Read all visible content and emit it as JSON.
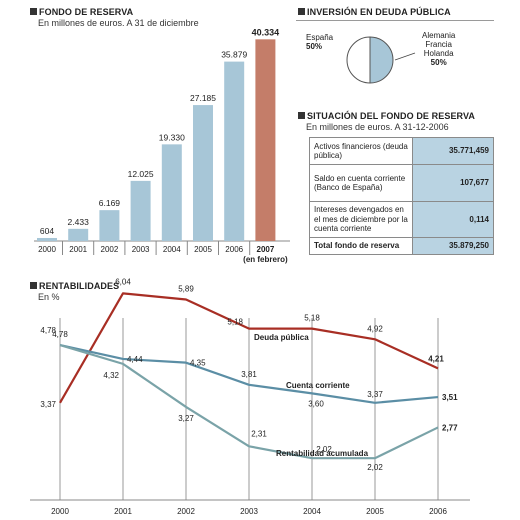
{
  "fondo": {
    "title": "FONDO DE RESERVA",
    "subtitle": "En millones de euros. A 31 de diciembre",
    "chart_data": {
      "type": "bar",
      "categories": [
        "2000",
        "2001",
        "2002",
        "2003",
        "2004",
        "2005",
        "2006",
        "2007"
      ],
      "values": [
        604,
        2433,
        6169,
        12025,
        19330,
        27185,
        35879,
        40334
      ],
      "value_labels": [
        "604",
        "2.433",
        "6.169",
        "12.025",
        "19.330",
        "27.185",
        "35.879",
        "40.334"
      ],
      "category_note": "(en febrero)",
      "highlight_index": 7,
      "ylim": [
        0,
        42000
      ],
      "colors": {
        "bar": "#a7c6d7",
        "highlight": "#c47d69"
      }
    }
  },
  "inversion": {
    "title": "INVERSIÓN EN DEUDA PÚBLICA",
    "chart_data": {
      "type": "pie",
      "slices": [
        {
          "label": "España",
          "value": 50,
          "value_label": "50%"
        },
        {
          "label": "Alemania Francia Holanda",
          "value": 50,
          "value_label": "50%"
        }
      ],
      "colors": [
        "#ffffff",
        "#a7c6d7"
      ]
    },
    "labels": {
      "espana": "España",
      "espana_pct": "50%",
      "others_1": "Alemania",
      "others_2": "Francia",
      "others_3": "Holanda",
      "others_pct": "50%"
    }
  },
  "situacion": {
    "title": "SITUACIÓN DEL FONDO DE RESERVA",
    "subtitle": "En millones de euros. A 31-12-2006",
    "chart_data": {
      "type": "table",
      "rows": [
        {
          "label": "Activos financieros (deuda pública)",
          "value": "35.771,459"
        },
        {
          "label": "Saldo en cuenta corriente (Banco de España)",
          "value": "107,677"
        },
        {
          "label": "Intereses devengados en el mes de diciembre por la cuenta corriente",
          "value": "0,114"
        },
        {
          "label": "Total fondo de reserva",
          "value": "35.879,250"
        }
      ]
    }
  },
  "rentabilidades": {
    "title": "RENTABILIDADES",
    "subtitle": "En %",
    "chart_data": {
      "type": "line",
      "x": [
        "2000",
        "2001",
        "2002",
        "2003",
        "2004",
        "2005",
        "2006"
      ],
      "ylim": [
        1,
        7
      ],
      "series": [
        {
          "name": "Deuda pública",
          "values": [
            3.37,
            6.04,
            5.89,
            5.18,
            5.18,
            4.92,
            4.21
          ],
          "labels": [
            "3,37",
            "6,04",
            "5,89",
            "5,18",
            "5,18",
            "4,92",
            "4,21"
          ],
          "color": "#a82e24"
        },
        {
          "name": "Cuenta corriente",
          "values": [
            4.78,
            4.44,
            4.35,
            3.81,
            3.6,
            3.37,
            3.51
          ],
          "labels": [
            "4,78",
            "4,44",
            "4,35",
            "3,81",
            "3,60",
            "3,37",
            "3,51"
          ],
          "color": "#5b8ea5"
        },
        {
          "name": "Rentabilidad acumulada",
          "values": [
            4.78,
            4.32,
            3.27,
            2.31,
            2.02,
            2.02,
            2.77
          ],
          "labels": [
            "4,78",
            "4,32",
            "3,27",
            "2,31",
            "2,02",
            "2,02",
            "2,77"
          ],
          "color": "#7aa3a8"
        }
      ]
    }
  }
}
